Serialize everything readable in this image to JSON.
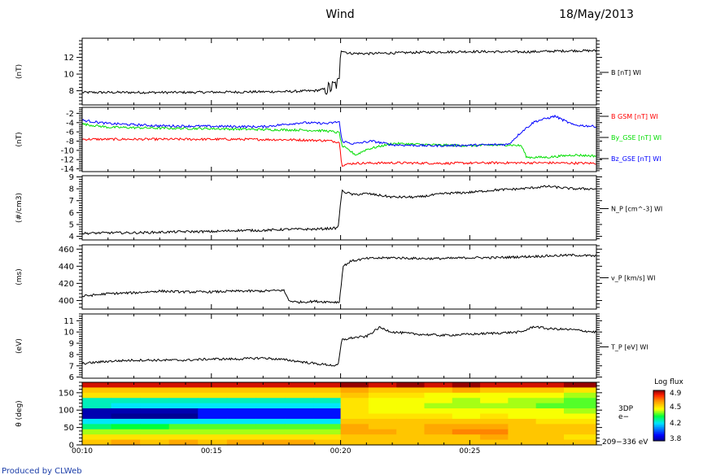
{
  "header": {
    "title": "Wind",
    "date": "18/May/2013"
  },
  "footer": {
    "produced_by": "Produced by CLWeb"
  },
  "colorbar": {
    "title": "Log flux",
    "ticks": [
      "4.9",
      "4.5",
      "4.2",
      "3.8"
    ]
  },
  "time_axis": {
    "start_min": 10,
    "end_min": 29.9,
    "major_ticks": [
      "00:10",
      "00:15",
      "00:20",
      "00:25"
    ]
  },
  "chart_data": [
    {
      "type": "line",
      "ylabel": "(nT)",
      "ylim": [
        6.3,
        14.3
      ],
      "yticks": [
        8,
        10,
        12
      ],
      "ytick_labels": [
        "8",
        "10",
        "12"
      ],
      "series": [
        {
          "name": "B [nT] WI",
          "color": "#000000",
          "x": [
            10,
            12,
            14,
            16,
            18,
            19,
            19.6,
            19.95,
            20.0,
            20.3,
            21,
            23,
            25,
            27,
            29,
            29.8
          ],
          "y": [
            7.8,
            7.8,
            7.8,
            7.85,
            7.9,
            8.0,
            8.3,
            9.0,
            12.9,
            12.5,
            12.45,
            12.6,
            12.7,
            12.65,
            12.8,
            12.8
          ]
        }
      ]
    },
    {
      "type": "line",
      "ylabel": "(nT)",
      "ylim": [
        -14.6,
        -0.7
      ],
      "yticks": [
        -14,
        -12,
        -10,
        -8,
        -6,
        -4,
        -2
      ],
      "ytick_labels": [
        "-14",
        "-12",
        "-10",
        "-8",
        "-6",
        "-4",
        "-2"
      ],
      "series": [
        {
          "name": "B GSM [nT] WI",
          "color": "#ff0000",
          "x": [
            10,
            12,
            14,
            16,
            18,
            19.5,
            19.95,
            20.05,
            20.5,
            22,
            24,
            26,
            28,
            29.8
          ],
          "y": [
            -7.6,
            -7.6,
            -7.6,
            -7.6,
            -7.7,
            -7.9,
            -8.2,
            -13.2,
            -12.8,
            -12.7,
            -12.8,
            -12.7,
            -12.7,
            -12.8
          ]
        },
        {
          "name": "By_GSE [nT] WI",
          "color": "#00dd00",
          "x": [
            10,
            11,
            13,
            15,
            17,
            18.5,
            19.5,
            19.95,
            20.05,
            20.6,
            21,
            22,
            23.5,
            25,
            26.5,
            27.0,
            27.2,
            28,
            29,
            29.8
          ],
          "y": [
            -4.3,
            -5.0,
            -5.2,
            -5.3,
            -5.5,
            -5.6,
            -5.8,
            -6.2,
            -9.0,
            -11.0,
            -9.8,
            -8.5,
            -8.8,
            -9.0,
            -8.8,
            -9.0,
            -11.5,
            -11.5,
            -11.0,
            -11.2
          ]
        },
        {
          "name": "Bz_GSE [nT] WI",
          "color": "#0000ff",
          "x": [
            10,
            11,
            13,
            15,
            17,
            18,
            18.5,
            19.5,
            19.95,
            20.05,
            20.5,
            21.2,
            22,
            23.5,
            25,
            26.5,
            27.0,
            27.5,
            28.3,
            29,
            29.8
          ],
          "y": [
            -3.5,
            -4.2,
            -4.7,
            -4.8,
            -4.9,
            -4.3,
            -4.0,
            -4.2,
            -3.8,
            -8.0,
            -8.6,
            -8.0,
            -8.8,
            -9.0,
            -8.9,
            -8.7,
            -6.0,
            -3.8,
            -2.6,
            -4.5,
            -4.8
          ]
        }
      ]
    },
    {
      "type": "line",
      "ylabel": "(#/cm3)",
      "ylim": [
        3.7,
        9.1
      ],
      "yticks": [
        4,
        5,
        6,
        7,
        8,
        9
      ],
      "ytick_labels": [
        "4",
        "5",
        "6",
        "7",
        "8",
        "9"
      ],
      "series": [
        {
          "name": "N_P [cm^-3] WI",
          "color": "#000000",
          "x": [
            10,
            11,
            12,
            13,
            14,
            15,
            16,
            17,
            18,
            19,
            19.9,
            20.05,
            20.5,
            21,
            22,
            23,
            24,
            25,
            26,
            27,
            28,
            29,
            29.8
          ],
          "y": [
            4.25,
            4.3,
            4.3,
            4.35,
            4.4,
            4.4,
            4.5,
            4.5,
            4.6,
            4.6,
            4.7,
            7.8,
            7.5,
            7.6,
            7.3,
            7.3,
            7.6,
            7.7,
            7.9,
            8.0,
            8.2,
            8.0,
            8.0
          ]
        }
      ]
    },
    {
      "type": "line",
      "ylabel": "(ms)",
      "ylim": [
        390,
        465
      ],
      "yticks": [
        400,
        420,
        440,
        460
      ],
      "ytick_labels": [
        "400",
        "420",
        "440",
        "460"
      ],
      "series": [
        {
          "name": "v_P [km/s] WI",
          "color": "#000000",
          "x": [
            10,
            11,
            12,
            13,
            14,
            15,
            16,
            17,
            17.8,
            18.0,
            18.3,
            19,
            19.95,
            20.1,
            20.4,
            21,
            22,
            23,
            24,
            25,
            26,
            27,
            28,
            29,
            29.8
          ],
          "y": [
            405,
            408,
            409,
            411,
            410,
            410,
            411,
            411,
            412,
            400,
            398,
            399,
            398,
            440,
            446,
            449,
            450,
            449,
            449,
            450,
            450,
            451,
            452,
            453,
            452
          ]
        }
      ]
    },
    {
      "type": "line",
      "ylabel": "(eV)",
      "ylim": [
        5.9,
        11.6
      ],
      "yticks": [
        6,
        7,
        8,
        9,
        10,
        11
      ],
      "ytick_labels": [
        "6",
        "7",
        "8",
        "9",
        "10",
        "11"
      ],
      "series": [
        {
          "name": "T_P [eV] WI",
          "color": "#000000",
          "x": [
            10,
            11,
            12,
            13,
            14,
            15,
            16,
            17,
            18,
            19,
            19.9,
            20.05,
            20.5,
            21,
            21.5,
            22,
            23,
            24,
            25,
            26,
            27,
            27.5,
            28,
            29,
            29.8
          ],
          "y": [
            7.2,
            7.4,
            7.5,
            7.5,
            7.5,
            7.6,
            7.6,
            7.7,
            7.5,
            7.2,
            7.0,
            9.3,
            9.5,
            9.6,
            10.4,
            10.0,
            9.8,
            9.7,
            9.8,
            9.9,
            10.0,
            10.5,
            10.3,
            10.2,
            10.0
          ]
        }
      ]
    },
    {
      "type": "heatmap",
      "ylabel": "θ (deg)",
      "ylim": [
        0,
        180
      ],
      "yticks": [
        0,
        50,
        100,
        150
      ],
      "ytick_labels": [
        "0",
        "50",
        "100",
        "150"
      ],
      "label_lines": [
        "3DP",
        "e−"
      ],
      "energy_label": "209−336 eV",
      "color_scale": [
        3.8,
        4.9
      ],
      "x_edges": [
        10,
        11.12,
        12.24,
        13.36,
        14.48,
        15.6,
        16.72,
        17.84,
        18.96,
        20.0,
        21.08,
        22.16,
        23.24,
        24.32,
        25.4,
        26.48,
        27.56,
        28.64,
        29.9
      ],
      "rows": [
        {
          "lo": 165,
          "hi": 180,
          "values": [
            4.85,
            4.85,
            4.85,
            4.85,
            4.85,
            4.85,
            4.85,
            4.85,
            4.85,
            4.9,
            4.85,
            4.9,
            4.85,
            4.9,
            4.85,
            4.85,
            4.85,
            4.9
          ]
        },
        {
          "lo": 150,
          "hi": 165,
          "values": [
            4.6,
            4.6,
            4.6,
            4.6,
            4.6,
            4.6,
            4.6,
            4.6,
            4.6,
            4.65,
            4.6,
            4.6,
            4.6,
            4.65,
            4.6,
            4.6,
            4.6,
            4.55
          ]
        },
        {
          "lo": 135,
          "hi": 150,
          "values": [
            4.55,
            4.55,
            4.55,
            4.55,
            4.55,
            4.55,
            4.55,
            4.55,
            4.55,
            4.6,
            4.55,
            4.55,
            4.5,
            4.5,
            4.5,
            4.5,
            4.5,
            4.45
          ]
        },
        {
          "lo": 120,
          "hi": 135,
          "values": [
            4.25,
            4.25,
            4.25,
            4.25,
            4.25,
            4.25,
            4.25,
            4.25,
            4.25,
            4.55,
            4.5,
            4.5,
            4.5,
            4.45,
            4.5,
            4.45,
            4.45,
            4.4
          ]
        },
        {
          "lo": 105,
          "hi": 120,
          "values": [
            4.25,
            4.2,
            4.2,
            4.2,
            4.2,
            4.2,
            4.2,
            4.2,
            4.2,
            4.55,
            4.5,
            4.5,
            4.45,
            4.45,
            4.45,
            4.45,
            4.4,
            4.4
          ]
        },
        {
          "lo": 90,
          "hi": 105,
          "values": [
            3.85,
            3.85,
            3.85,
            3.85,
            3.95,
            3.95,
            3.95,
            3.95,
            3.95,
            4.55,
            4.5,
            4.5,
            4.5,
            4.5,
            4.5,
            4.5,
            4.5,
            4.45
          ]
        },
        {
          "lo": 75,
          "hi": 90,
          "values": [
            3.85,
            3.82,
            3.82,
            3.82,
            3.95,
            3.95,
            3.95,
            3.95,
            3.95,
            4.55,
            4.55,
            4.55,
            4.55,
            4.5,
            4.55,
            4.5,
            4.5,
            4.5
          ]
        },
        {
          "lo": 60,
          "hi": 75,
          "values": [
            4.2,
            4.2,
            4.2,
            4.2,
            4.2,
            4.2,
            4.2,
            4.2,
            4.2,
            4.6,
            4.6,
            4.6,
            4.6,
            4.6,
            4.6,
            4.6,
            4.55,
            4.55
          ]
        },
        {
          "lo": 45,
          "hi": 60,
          "values": [
            4.3,
            4.35,
            4.35,
            4.4,
            4.4,
            4.4,
            4.4,
            4.4,
            4.4,
            4.65,
            4.6,
            4.6,
            4.65,
            4.65,
            4.65,
            4.6,
            4.6,
            4.6
          ]
        },
        {
          "lo": 30,
          "hi": 45,
          "values": [
            4.45,
            4.45,
            4.45,
            4.45,
            4.45,
            4.45,
            4.45,
            4.45,
            4.45,
            4.65,
            4.65,
            4.6,
            4.65,
            4.7,
            4.7,
            4.6,
            4.6,
            4.6
          ]
        },
        {
          "lo": 15,
          "hi": 30,
          "values": [
            4.55,
            4.55,
            4.55,
            4.55,
            4.55,
            4.55,
            4.55,
            4.55,
            4.55,
            4.6,
            4.6,
            4.6,
            4.6,
            4.6,
            4.65,
            4.6,
            4.6,
            4.55
          ]
        },
        {
          "lo": 0,
          "hi": 15,
          "values": [
            4.6,
            4.65,
            4.6,
            4.65,
            4.6,
            4.65,
            4.65,
            4.65,
            4.6,
            4.6,
            4.6,
            4.6,
            4.6,
            4.6,
            4.6,
            4.6,
            4.6,
            4.6
          ]
        }
      ]
    }
  ]
}
